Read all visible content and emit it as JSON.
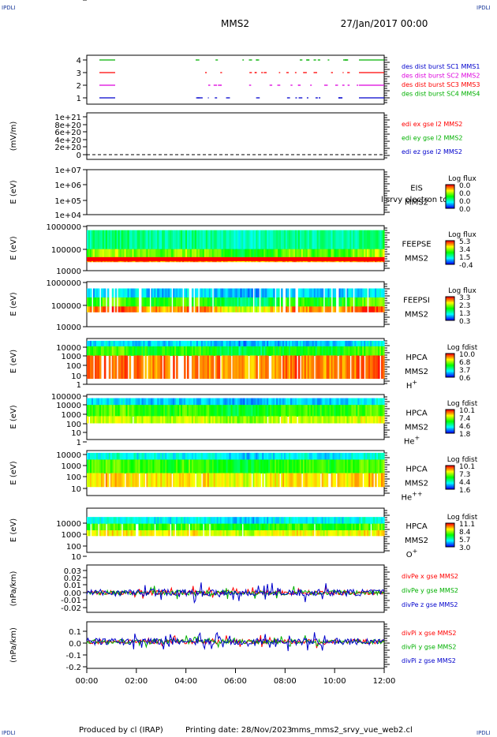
{
  "header": {
    "spacecraft": "MMS2",
    "date": "27/Jan/2017 00:00",
    "corner_mark": "IPDLI"
  },
  "footer": {
    "produced_by": "Produced by cl (IRAP)",
    "printing_date": "Printing date: 28/Nov/2023",
    "filename": "mms_mms2_srvy_vue_web2.cl"
  },
  "colors": {
    "red": "#ff0000",
    "green": "#00b000",
    "blue": "#0000cc",
    "magenta": "#dd00dd"
  },
  "chart_data": [
    {
      "type": "line",
      "name": "des-dist-burst",
      "ylabel": "",
      "yticks": [
        "4",
        "3",
        "2",
        "1"
      ],
      "legend": [
        {
          "label": "des dist burst SC1 MMS1",
          "color": "#0000cc"
        },
        {
          "label": "des dist burst SC2 MMS2",
          "color": "#dd00dd"
        },
        {
          "label": "des dist burst SC3 MMS3",
          "color": "#ff0000"
        },
        {
          "label": "des dist burst SC4 MMS4",
          "color": "#00b000"
        }
      ]
    },
    {
      "type": "line",
      "name": "edi",
      "ylabel": "(mV/m)",
      "yticks": [
        "1e+21",
        "8e+20",
        "6e+20",
        "4e+20",
        "2e+20",
        "0"
      ],
      "legend": [
        {
          "label": "edi ex gse l2 MMS2",
          "color": "#ff0000"
        },
        {
          "label": "edi ey gse l2 MMS2",
          "color": "#00b000"
        },
        {
          "label": "edi ez gse l2 MMS2",
          "color": "#0000cc"
        }
      ]
    },
    {
      "type": "heatmap",
      "name": "eis",
      "ylabel": "E (eV)",
      "yticks": [
        "1e+07",
        "1e+06",
        "1e+05",
        "1e+04"
      ],
      "instrument": [
        "EIS",
        "MMS2"
      ],
      "overlay_text": "l  srvy electron to",
      "colorbar": {
        "title": "Log flux",
        "ticks": [
          "0.0",
          "0.0",
          "0.0",
          "0.0"
        ]
      }
    },
    {
      "type": "heatmap",
      "name": "feepse",
      "ylabel": "E (eV)",
      "yticks": [
        "1000000",
        "100000",
        "10000"
      ],
      "instrument": [
        "FEEPSE",
        "MMS2"
      ],
      "colorbar": {
        "title": "Log flux",
        "ticks": [
          "5.3",
          "3.4",
          "1.5",
          "-0.4"
        ]
      }
    },
    {
      "type": "heatmap",
      "name": "feepsi",
      "ylabel": "E (eV)",
      "yticks": [
        "1000000",
        "100000",
        "10000"
      ],
      "instrument": [
        "FEEPSI",
        "MMS2"
      ],
      "colorbar": {
        "title": "Log flux",
        "ticks": [
          "3.3",
          "2.3",
          "1.3",
          "0.3"
        ]
      }
    },
    {
      "type": "heatmap",
      "name": "hpca-h",
      "ylabel": "E (eV)",
      "yticks": [
        "10000",
        "1000",
        "100",
        "10",
        "1"
      ],
      "instrument": [
        "HPCA",
        "MMS2"
      ],
      "species": "H",
      "charge": "+",
      "colorbar": {
        "title": "Log fdist",
        "ticks": [
          "10.0",
          "6.8",
          "3.7",
          "0.6"
        ]
      }
    },
    {
      "type": "heatmap",
      "name": "hpca-he",
      "ylabel": "E (eV)",
      "yticks": [
        "100000",
        "10000",
        "1000",
        "100",
        "10",
        "1"
      ],
      "instrument": [
        "HPCA",
        "MMS2"
      ],
      "species": "He",
      "charge": "+",
      "colorbar": {
        "title": "Log fdist",
        "ticks": [
          "10.1",
          "7.4",
          "4.6",
          "1.8"
        ]
      }
    },
    {
      "type": "heatmap",
      "name": "hpca-hepp",
      "ylabel": "E (eV)",
      "yticks": [
        "10000",
        "1000",
        "100",
        "10"
      ],
      "instrument": [
        "HPCA",
        "MMS2"
      ],
      "species": "He",
      "charge": "++",
      "colorbar": {
        "title": "Log fdist",
        "ticks": [
          "10.1",
          "7.3",
          "4.4",
          "1.6"
        ]
      }
    },
    {
      "type": "heatmap",
      "name": "hpca-o",
      "ylabel": "E (eV)",
      "yticks": [
        "10000",
        "1000",
        "100",
        "10",
        "1"
      ],
      "instrument": [
        "HPCA",
        "MMS2"
      ],
      "species": "O",
      "charge": "+",
      "colorbar": {
        "title": "Log fdist",
        "ticks": [
          "11.1",
          "8.4",
          "5.7",
          "3.0"
        ]
      }
    },
    {
      "type": "line",
      "name": "divpe",
      "ylabel": "(nPa/km)",
      "yticks": [
        "0.03",
        "0.02",
        "0.01",
        "0.00",
        "-0.01",
        "-0.02"
      ],
      "ylim": [
        -0.025,
        0.035
      ],
      "legend": [
        {
          "label": "divPe x gse MMS2",
          "color": "#ff0000"
        },
        {
          "label": "divPe y gse MMS2",
          "color": "#00b000"
        },
        {
          "label": "divPe z gse MMS2",
          "color": "#0000cc"
        }
      ]
    },
    {
      "type": "line",
      "name": "divpi",
      "ylabel": "(nPa/km)",
      "yticks": [
        "0.1",
        "0.0",
        "-0.1",
        "-0.2"
      ],
      "ylim": [
        -0.23,
        0.17
      ],
      "legend": [
        {
          "label": "divPi x gse MMS2",
          "color": "#ff0000"
        },
        {
          "label": "divPi y gse MMS2",
          "color": "#00b000"
        },
        {
          "label": "divPi z gse MMS2",
          "color": "#0000cc"
        }
      ]
    }
  ],
  "xaxis": {
    "ticks": [
      "00:00",
      "02:00",
      "04:00",
      "06:00",
      "08:00",
      "10:00",
      "12:00"
    ]
  }
}
